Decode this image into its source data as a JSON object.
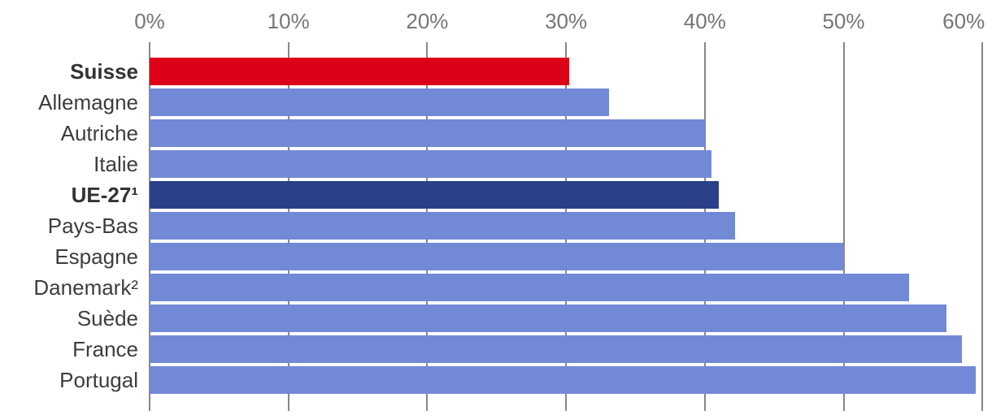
{
  "chart_data": {
    "type": "bar",
    "orientation": "horizontal",
    "title": "",
    "xlabel": "",
    "ylabel": "",
    "xlim": [
      0,
      60
    ],
    "grid": true,
    "x_ticks": [
      "0%",
      "10%",
      "20%",
      "30%",
      "40%",
      "50%",
      "60%"
    ],
    "x_tick_values": [
      0,
      10,
      20,
      30,
      40,
      50,
      60
    ],
    "categories": [
      "Suisse",
      "Allemagne",
      "Autriche",
      "Italie",
      "UE-27¹",
      "Pays-Bas",
      "Espagne",
      "Danemark²",
      "Suède",
      "France",
      "Portugal"
    ],
    "values": [
      30.2,
      33.1,
      40.0,
      40.5,
      41.0,
      42.2,
      50.0,
      54.7,
      57.4,
      58.5,
      59.5
    ],
    "bold_categories": [
      "Suisse",
      "UE-27¹"
    ],
    "colors": {
      "default_bar": "#7289D6",
      "suisse_bar": "#DC0018",
      "ue27_bar": "#2B4089",
      "gridline": "#878787",
      "tick_label": "#757575",
      "category_label": "#3D3D3D"
    },
    "highlight_colors_by_category": {
      "Suisse": "#DC0018",
      "UE-27¹": "#2B4089"
    }
  }
}
